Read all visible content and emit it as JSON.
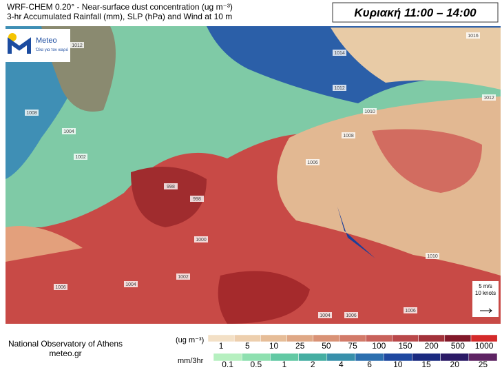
{
  "header": {
    "title_line1": "WRF-CHEM 0.20° - Near-surface dust concentration (ug m⁻³)",
    "title_line2": "3-hr Accumulated Rainfall (mm), SLP (hPa) and Wind at 10 m",
    "time": "Κυριακή 11:00 – 14:00"
  },
  "logo": {
    "name": "Meteo",
    "tagline": "Όλα για τον καιρό"
  },
  "isobars": [
    1012,
    1014,
    1012,
    1010,
    1008,
    1006,
    1008,
    1004,
    1002,
    998,
    998,
    1000,
    1002,
    1004,
    1006,
    1004,
    1006,
    1006,
    1010,
    1016,
    1012
  ],
  "wind_key": {
    "speed": "5 m/s",
    "knots": "10 knots"
  },
  "footer": {
    "institute": "National Observatory of Athens",
    "site": "meteo.gr"
  },
  "dust_legend": {
    "unit": "(ug m⁻³)",
    "labels": [
      1,
      5,
      10,
      25,
      50,
      75,
      100,
      150,
      200,
      500,
      1000
    ],
    "colors": [
      "#f3e0c6",
      "#edcfae",
      "#e6bd98",
      "#dfa886",
      "#d99276",
      "#d27a69",
      "#c8625b",
      "#b9484a",
      "#a2323a",
      "#82192a",
      "#d42a2a"
    ]
  },
  "rain_legend": {
    "unit": "mm/3hr",
    "labels": [
      0.1,
      0.5,
      1,
      2,
      4,
      6,
      10,
      15,
      20,
      25
    ],
    "colors": [
      "#b6f0c0",
      "#8ee0b0",
      "#62c9a4",
      "#45aea2",
      "#3890ab",
      "#2c6faf",
      "#1f48a0",
      "#1a2a80",
      "#2b1a66",
      "#5e2463"
    ]
  }
}
